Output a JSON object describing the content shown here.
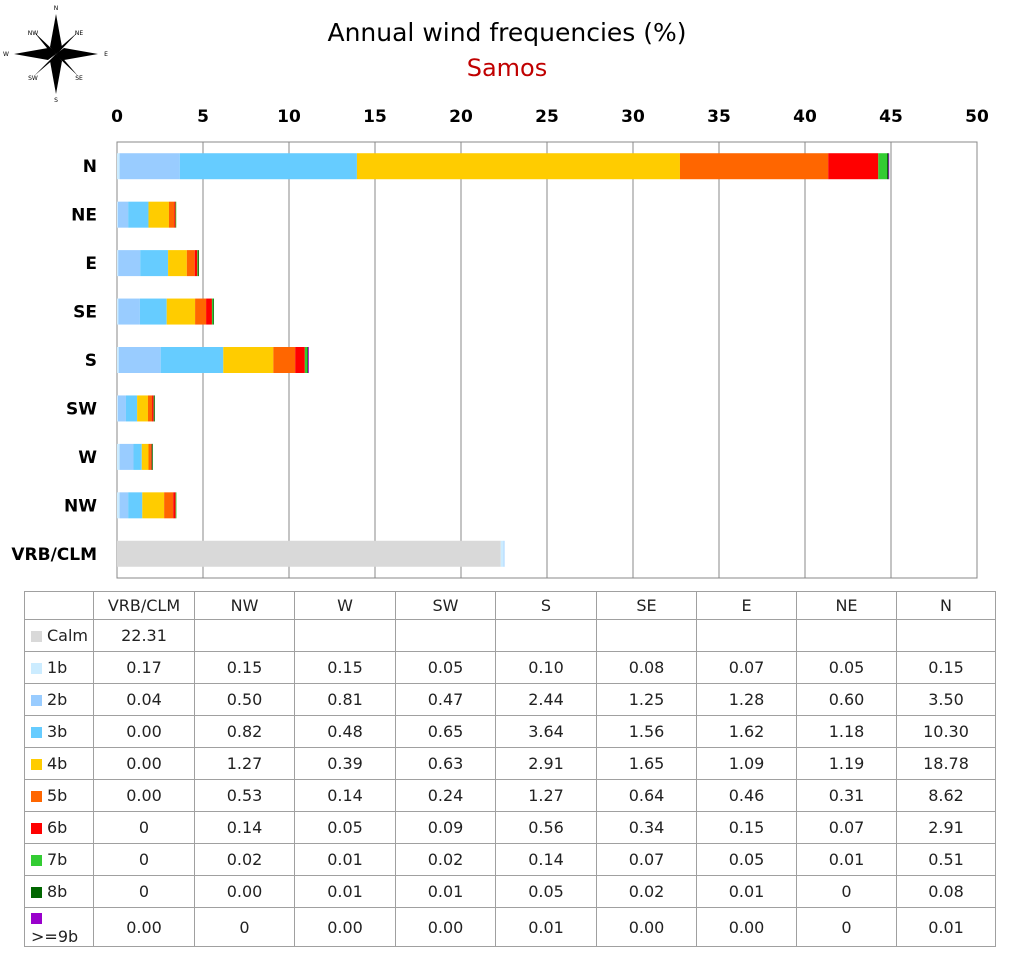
{
  "chart_data": {
    "type": "bar",
    "orientation": "horizontal",
    "stacked": true,
    "title": "Annual wind frequencies (%)",
    "subtitle": "Samos",
    "xlim": [
      0,
      50
    ],
    "x_ticks": [
      0,
      5,
      10,
      15,
      20,
      25,
      30,
      35,
      40,
      45,
      50
    ],
    "grid": true,
    "categories": [
      "N",
      "NE",
      "E",
      "SE",
      "S",
      "SW",
      "W",
      "NW",
      "VRB/CLM"
    ],
    "series": [
      {
        "name": "Calm",
        "color": "#d9d9d9",
        "values": [
          0,
          0,
          0,
          0,
          0,
          0,
          0,
          0,
          22.31
        ]
      },
      {
        "name": "1b",
        "color": "#ccecff",
        "values": [
          0.15,
          0.05,
          0.07,
          0.08,
          0.1,
          0.05,
          0.15,
          0.15,
          0.17
        ]
      },
      {
        "name": "2b",
        "color": "#99ccff",
        "values": [
          3.5,
          0.6,
          1.28,
          1.25,
          2.44,
          0.47,
          0.81,
          0.5,
          0.04
        ]
      },
      {
        "name": "3b",
        "color": "#66ccff",
        "values": [
          10.3,
          1.18,
          1.62,
          1.56,
          3.64,
          0.65,
          0.48,
          0.82,
          0.0
        ]
      },
      {
        "name": "4b",
        "color": "#ffcc00",
        "values": [
          18.78,
          1.19,
          1.09,
          1.65,
          2.91,
          0.63,
          0.39,
          1.27,
          0.0
        ]
      },
      {
        "name": "5b",
        "color": "#ff6600",
        "values": [
          8.62,
          0.31,
          0.46,
          0.64,
          1.27,
          0.24,
          0.14,
          0.53,
          0.0
        ]
      },
      {
        "name": "6b",
        "color": "#ff0000",
        "values": [
          2.91,
          0.07,
          0.15,
          0.34,
          0.56,
          0.09,
          0.05,
          0.14,
          0
        ]
      },
      {
        "name": "7b",
        "color": "#33cc33",
        "values": [
          0.51,
          0.01,
          0.05,
          0.07,
          0.14,
          0.02,
          0.01,
          0.02,
          0
        ]
      },
      {
        "name": "8b",
        "color": "#006600",
        "values": [
          0.08,
          0,
          0.01,
          0.02,
          0.05,
          0.01,
          0.01,
          0.0,
          0
        ]
      },
      {
        "name": ">=9b",
        "color": "#9900cc",
        "values": [
          0.01,
          0,
          0.0,
          0.0,
          0.01,
          0.0,
          0.0,
          0,
          0.0
        ]
      }
    ]
  },
  "compass": {
    "n": "N",
    "ne": "NE",
    "e": "E",
    "se": "SE",
    "s": "S",
    "sw": "SW",
    "w": "W",
    "nw": "NW"
  },
  "table": {
    "headers": [
      "VRB/CLM",
      "NW",
      "W",
      "SW",
      "S",
      "SE",
      "E",
      "NE",
      "N"
    ],
    "rows": [
      {
        "label": "Calm",
        "color": "#d9d9d9",
        "cells": [
          "22.31",
          "",
          "",
          "",
          "",
          "",
          "",
          "",
          ""
        ]
      },
      {
        "label": "1b",
        "color": "#ccecff",
        "cells": [
          "0.17",
          "0.15",
          "0.15",
          "0.05",
          "0.10",
          "0.08",
          "0.07",
          "0.05",
          "0.15"
        ]
      },
      {
        "label": "2b",
        "color": "#99ccff",
        "cells": [
          "0.04",
          "0.50",
          "0.81",
          "0.47",
          "2.44",
          "1.25",
          "1.28",
          "0.60",
          "3.50"
        ]
      },
      {
        "label": "3b",
        "color": "#66ccff",
        "cells": [
          "0.00",
          "0.82",
          "0.48",
          "0.65",
          "3.64",
          "1.56",
          "1.62",
          "1.18",
          "10.30"
        ]
      },
      {
        "label": "4b",
        "color": "#ffcc00",
        "cells": [
          "0.00",
          "1.27",
          "0.39",
          "0.63",
          "2.91",
          "1.65",
          "1.09",
          "1.19",
          "18.78"
        ]
      },
      {
        "label": "5b",
        "color": "#ff6600",
        "cells": [
          "0.00",
          "0.53",
          "0.14",
          "0.24",
          "1.27",
          "0.64",
          "0.46",
          "0.31",
          "8.62"
        ]
      },
      {
        "label": "6b",
        "color": "#ff0000",
        "cells": [
          "0",
          "0.14",
          "0.05",
          "0.09",
          "0.56",
          "0.34",
          "0.15",
          "0.07",
          "2.91"
        ]
      },
      {
        "label": "7b",
        "color": "#33cc33",
        "cells": [
          "0",
          "0.02",
          "0.01",
          "0.02",
          "0.14",
          "0.07",
          "0.05",
          "0.01",
          "0.51"
        ]
      },
      {
        "label": "8b",
        "color": "#006600",
        "cells": [
          "0",
          "0.00",
          "0.01",
          "0.01",
          "0.05",
          "0.02",
          "0.01",
          "0",
          "0.08"
        ]
      },
      {
        "label": ">=9b",
        "color": "#9900cc",
        "cells": [
          "0.00",
          "0",
          "0.00",
          "0.00",
          "0.01",
          "0.00",
          "0.00",
          "0",
          "0.01"
        ]
      }
    ]
  }
}
